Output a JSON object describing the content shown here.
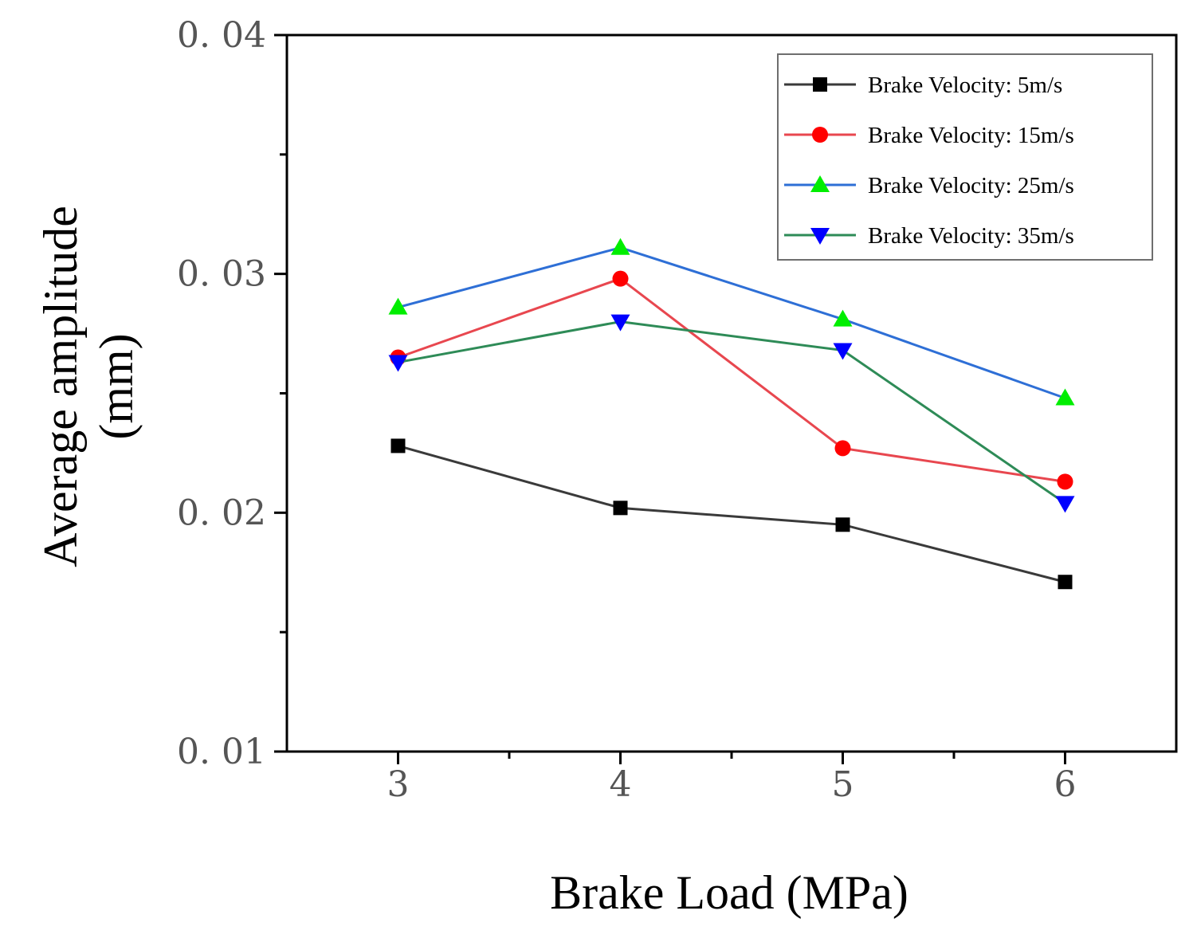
{
  "chart_data": {
    "type": "line",
    "title": "",
    "xlabel": "Brake Load (MPa)",
    "ylabel_line1": "Average amplitude",
    "ylabel_line2": "(mm)",
    "x": [
      3,
      4,
      5,
      6
    ],
    "xtick_labels": [
      "3",
      "4",
      "5",
      "6"
    ],
    "xlim": [
      2.5,
      6.5
    ],
    "ylim": [
      0.01,
      0.04
    ],
    "yticks": [
      0.01,
      0.02,
      0.03,
      0.04
    ],
    "ytick_labels": [
      "0. 01",
      "0. 02",
      "0. 03",
      "0. 04"
    ],
    "grid": false,
    "legend_position": "top-right",
    "series": [
      {
        "name": "Brake Velocity: 5m/s",
        "values": [
          0.0228,
          0.0202,
          0.0195,
          0.0171
        ],
        "line_color": "#3a3a3a",
        "marker_color": "#000000",
        "marker": "square"
      },
      {
        "name": "Brake Velocity: 15m/s",
        "values": [
          0.0265,
          0.0298,
          0.0227,
          0.0213
        ],
        "line_color": "#e8474f",
        "marker_color": "#ff0000",
        "marker": "circle"
      },
      {
        "name": "Brake Velocity: 25m/s",
        "values": [
          0.0286,
          0.0311,
          0.0281,
          0.0248
        ],
        "line_color": "#2e6fd6",
        "marker_color": "#00ee00",
        "marker": "triangle-up"
      },
      {
        "name": "Brake Velocity: 35m/s",
        "values": [
          0.0263,
          0.028,
          0.0268,
          0.0204
        ],
        "line_color": "#2e8b57",
        "marker_color": "#0000ff",
        "marker": "triangle-down"
      }
    ]
  }
}
